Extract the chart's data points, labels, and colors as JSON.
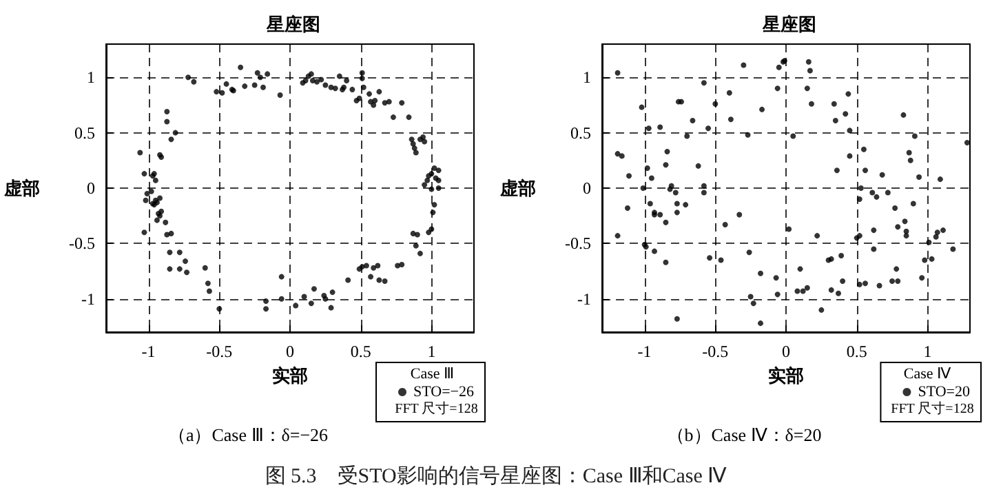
{
  "chart_data": [
    {
      "type": "scatter",
      "title": "星座图",
      "xlabel": "实部",
      "ylabel": "虚部",
      "legend_title": "Case Ⅲ",
      "annotations": [
        "FFT 尺寸=128",
        "（a）Case Ⅲ：δ=−26",
        "图 5.3　受STO影响的信号星座图：Case Ⅲ和Case Ⅳ"
      ],
      "xlim": [
        -1.3,
        1.3
      ],
      "ylim": [
        -1.3,
        1.3
      ],
      "xticks": [
        -1,
        -0.5,
        0,
        0.5,
        1
      ],
      "yticks": [
        -1,
        -0.5,
        0,
        0.5,
        1
      ],
      "grid": true,
      "legend": "bottom right",
      "marker": "circle",
      "series": [
        {
          "name": "STO=−26",
          "color": "#000000",
          "x": [
            -0.72,
            -0.68,
            -0.52,
            -0.48,
            -0.45,
            -0.41,
            -0.4,
            -0.35,
            -0.32,
            -0.25,
            -0.23,
            -0.19,
            -0.21,
            -0.16,
            -0.07,
            0.09,
            0.11,
            0.13,
            0.15,
            0.16,
            0.19,
            0.22,
            0.25,
            0.29,
            0.32,
            0.35,
            0.37,
            0.38,
            0.4,
            0.44,
            0.47,
            0.49,
            0.51,
            0.51,
            0.52,
            0.56,
            0.57,
            0.59,
            0.6,
            0.63,
            0.67,
            0.7,
            0.73,
            0.79,
            0.84,
            0.86,
            0.87,
            0.89,
            0.92,
            0.94,
            0.95,
            0.88,
            0.97,
            0.98,
            1.0,
            1.02,
            1.03,
            1.05,
            1.05,
            0.95,
            1.0,
            1.05,
            1.02,
            1.01,
            0.87,
            0.9,
            0.98,
            1.0,
            0.89,
            0.92,
            0.49,
            0.51,
            0.54,
            0.57,
            0.59,
            0.62,
            0.63,
            0.67,
            0.76,
            0.79,
            0.41,
            -0.06,
            -0.06,
            0.04,
            0.1,
            0.15,
            0.17,
            0.24,
            0.25,
            0.29,
            0.3,
            -0.17,
            -0.17,
            -0.5,
            -0.58,
            -0.57,
            -0.6,
            -0.74,
            -0.73,
            -0.78,
            -0.78,
            -0.85,
            -0.85,
            -0.87,
            -0.84,
            -0.88,
            -1.03,
            -1.02,
            -1.01,
            -0.98,
            -0.97,
            -0.96,
            -0.95,
            -0.94,
            -0.92,
            -0.91,
            -0.93,
            -0.94,
            -0.92,
            -0.95,
            -0.97,
            -0.96,
            -1.03,
            -1.06,
            -0.92,
            -0.91,
            -0.87,
            -0.87,
            -0.84,
            -0.81
          ],
          "values": [
            1.0,
            0.96,
            0.87,
            0.86,
            0.94,
            0.89,
            0.88,
            1.09,
            0.92,
            0.93,
            1.04,
            0.91,
            1.0,
            1.03,
            0.84,
            0.95,
            0.97,
            1.01,
            1.03,
            0.97,
            0.96,
            0.98,
            0.93,
            0.91,
            0.9,
            1.01,
            0.89,
            0.91,
            0.97,
            0.89,
            0.79,
            0.81,
            0.99,
            1.04,
            0.91,
            0.85,
            0.78,
            0.75,
            0.79,
            0.87,
            0.77,
            0.78,
            0.64,
            0.77,
            0.64,
            0.44,
            0.4,
            0.32,
            0.44,
            0.46,
            0.42,
            0.36,
            0.07,
            0.11,
            0.13,
            0.18,
            0.09,
            0.16,
            0.07,
            0.03,
            -0.01,
            0.0,
            -0.15,
            -0.22,
            -0.41,
            -0.42,
            -0.4,
            -0.37,
            -0.52,
            -0.59,
            -0.73,
            -0.71,
            -0.7,
            -0.8,
            -0.72,
            -0.7,
            -0.83,
            -0.84,
            -0.7,
            -0.69,
            -0.83,
            -0.8,
            -1.0,
            -1.06,
            -0.98,
            -1.04,
            -0.91,
            -0.97,
            -1.0,
            -1.08,
            -0.94,
            -1.02,
            -1.09,
            -1.09,
            -0.86,
            -0.93,
            -0.72,
            -0.66,
            -0.76,
            -0.73,
            -0.58,
            -0.58,
            -0.73,
            -0.42,
            -0.41,
            -0.31,
            -0.4,
            -0.11,
            -0.05,
            -0.03,
            -0.14,
            -0.15,
            -0.11,
            -0.13,
            -0.25,
            -0.21,
            -0.23,
            -0.29,
            -0.09,
            0.07,
            0.11,
            0.13,
            0.13,
            0.32,
            0.3,
            0.28,
            0.69,
            0.6,
            0.44,
            0.5
          ]
        }
      ]
    },
    {
      "type": "scatter",
      "title": "星座图",
      "xlabel": "实部",
      "ylabel": "虚部",
      "legend_title": "Case Ⅳ",
      "annotations": [
        "FFT 尺寸=128",
        "（b）Case Ⅳ：δ=20"
      ],
      "xlim": [
        -1.3,
        1.3
      ],
      "ylim": [
        -1.3,
        1.3
      ],
      "xticks": [
        -1,
        -0.5,
        0,
        0.5,
        1
      ],
      "yticks": [
        -1,
        -0.5,
        0,
        0.5,
        1
      ],
      "grid": true,
      "legend": "bottom right",
      "marker": "circle",
      "series": [
        {
          "name": "STO=20",
          "color": "#000000",
          "x": [
            -1.19,
            -1.19,
            -1.16,
            -1.11,
            -1.12,
            -1.19,
            -1.02,
            -1.01,
            -0.98,
            -0.97,
            -0.96,
            -0.95,
            -0.93,
            -0.93,
            -1.0,
            -0.99,
            -0.93,
            -0.89,
            -0.89,
            -0.85,
            -0.84,
            -0.85,
            -0.85,
            -0.82,
            -0.81,
            -0.78,
            -0.77,
            -0.77,
            -0.77,
            -0.76,
            -0.74,
            -0.71,
            -0.7,
            -0.66,
            -0.62,
            -0.58,
            -0.58,
            -0.58,
            -0.55,
            -0.54,
            -0.5,
            -0.46,
            -0.43,
            -0.4,
            -0.39,
            -0.33,
            -0.3,
            -0.27,
            -0.26,
            -0.25,
            -0.23,
            -0.18,
            -0.18,
            -0.17,
            -0.07,
            -0.06,
            -0.06,
            -0.05,
            -0.02,
            -0.01,
            0.02,
            0.05,
            0.08,
            0.1,
            0.12,
            0.15,
            0.15,
            0.16,
            0.17,
            0.18,
            0.22,
            0.25,
            0.3,
            0.32,
            0.32,
            0.34,
            0.35,
            0.36,
            0.37,
            0.39,
            0.4,
            0.42,
            0.44,
            0.45,
            0.52,
            0.52,
            0.53,
            0.55,
            0.56,
            0.56,
            0.61,
            0.62,
            0.62,
            0.64,
            0.66,
            0.68,
            0.72,
            0.75,
            0.77,
            0.78,
            0.79,
            0.79,
            0.83,
            0.84,
            0.85,
            0.85,
            0.87,
            0.88,
            0.9,
            0.91,
            0.94,
            0.96,
            0.98,
            1.01,
            1.03,
            1.06,
            1.07,
            1.09,
            1.11,
            1.18,
            1.28,
            0.5,
            0.52,
            0.45
          ],
          "values": [
            1.04,
            0.31,
            0.29,
            0.11,
            -0.18,
            -0.43,
            0.73,
            0.0,
            0.18,
            0.54,
            -0.14,
            0.09,
            -0.24,
            -0.22,
            -0.51,
            -0.53,
            -0.57,
            -0.24,
            0.55,
            0.21,
            0.33,
            -0.31,
            -0.67,
            -0.01,
            0.02,
            -0.04,
            -0.14,
            -0.22,
            -1.18,
            0.78,
            0.78,
            -0.15,
            0.47,
            0.61,
            0.2,
            0.02,
            -0.04,
            0.95,
            0.54,
            -0.63,
            0.76,
            -0.65,
            -0.33,
            0.86,
            0.62,
            -0.24,
            1.11,
            0.48,
            -0.58,
            -0.98,
            -1.04,
            -0.77,
            -1.22,
            0.71,
            -0.81,
            -0.96,
            0.9,
            1.09,
            1.14,
            1.15,
            -0.37,
            0.47,
            -0.93,
            -0.73,
            -0.93,
            -0.9,
            0.9,
            1.14,
            1.06,
            0.76,
            -0.43,
            -1.1,
            -0.65,
            -0.64,
            -0.92,
            0.76,
            0.61,
            0.16,
            -0.95,
            -0.61,
            -0.84,
            0.67,
            0.85,
            0.52,
            -0.87,
            -0.1,
            0.0,
            0.35,
            0.16,
            -0.86,
            -0.04,
            -0.38,
            -0.55,
            -0.08,
            -0.88,
            0.12,
            -0.04,
            -0.84,
            -0.18,
            -0.73,
            -0.35,
            -0.84,
            0.66,
            -0.3,
            -0.39,
            -0.43,
            0.32,
            0.25,
            -0.14,
            0.47,
            0.1,
            -0.81,
            -0.65,
            -0.49,
            -0.64,
            -0.44,
            -0.4,
            0.08,
            -0.38,
            -0.55,
            0.41,
            -0.45,
            -0.43,
            0.29
          ]
        }
      ]
    }
  ]
}
